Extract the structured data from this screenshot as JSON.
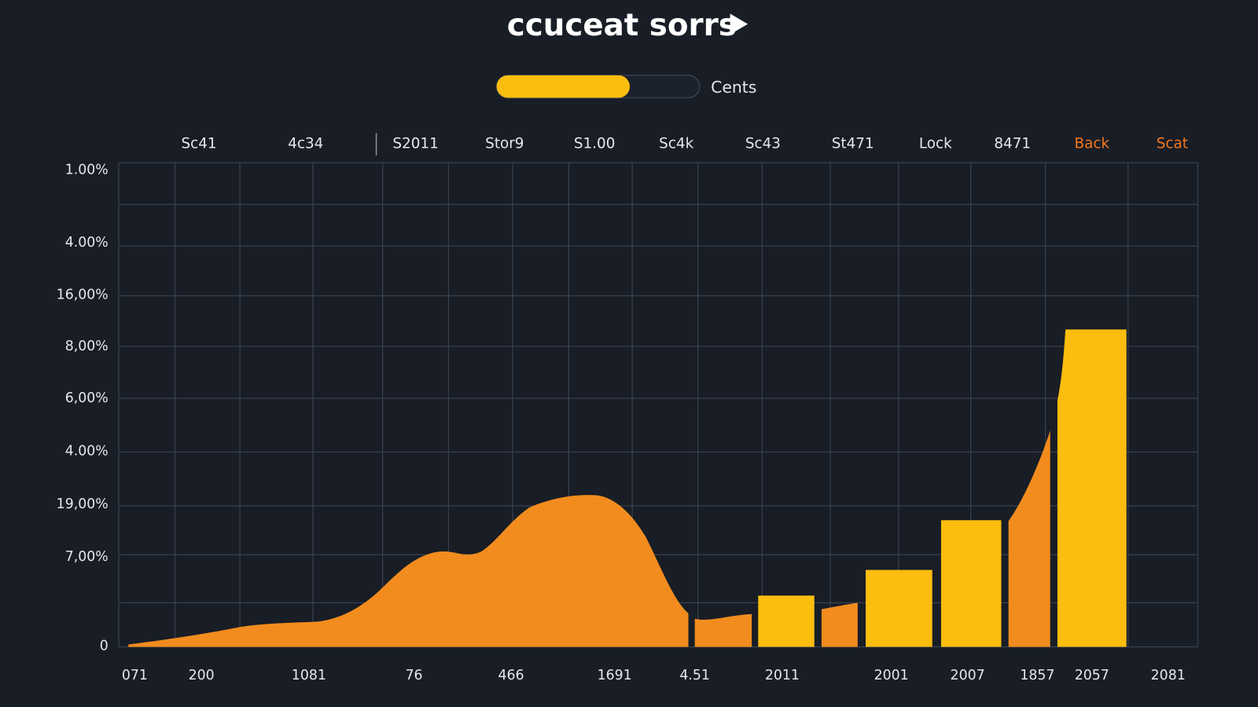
{
  "header": {
    "title": "ccuceat sorrs"
  },
  "toggle": {
    "label": "Cents"
  },
  "tabs": [
    "Sc41",
    "4c34",
    "S2011",
    "Stor9",
    "S1.00",
    "Sc4k",
    "Sc43",
    "St471",
    "Lock",
    "8471",
    "Back",
    "Scat"
  ],
  "y_labels": [
    "1.00%",
    "4.00%",
    "16,00%",
    "8,00%",
    "6,00%",
    "4.00%",
    "19,00%",
    "7,00%",
    "0"
  ],
  "x_labels": [
    "071",
    "200",
    "1081",
    "76",
    "466",
    "1691",
    "4.51",
    "2011",
    "2001",
    "2007",
    "1857",
    "2057",
    "2081"
  ]
}
